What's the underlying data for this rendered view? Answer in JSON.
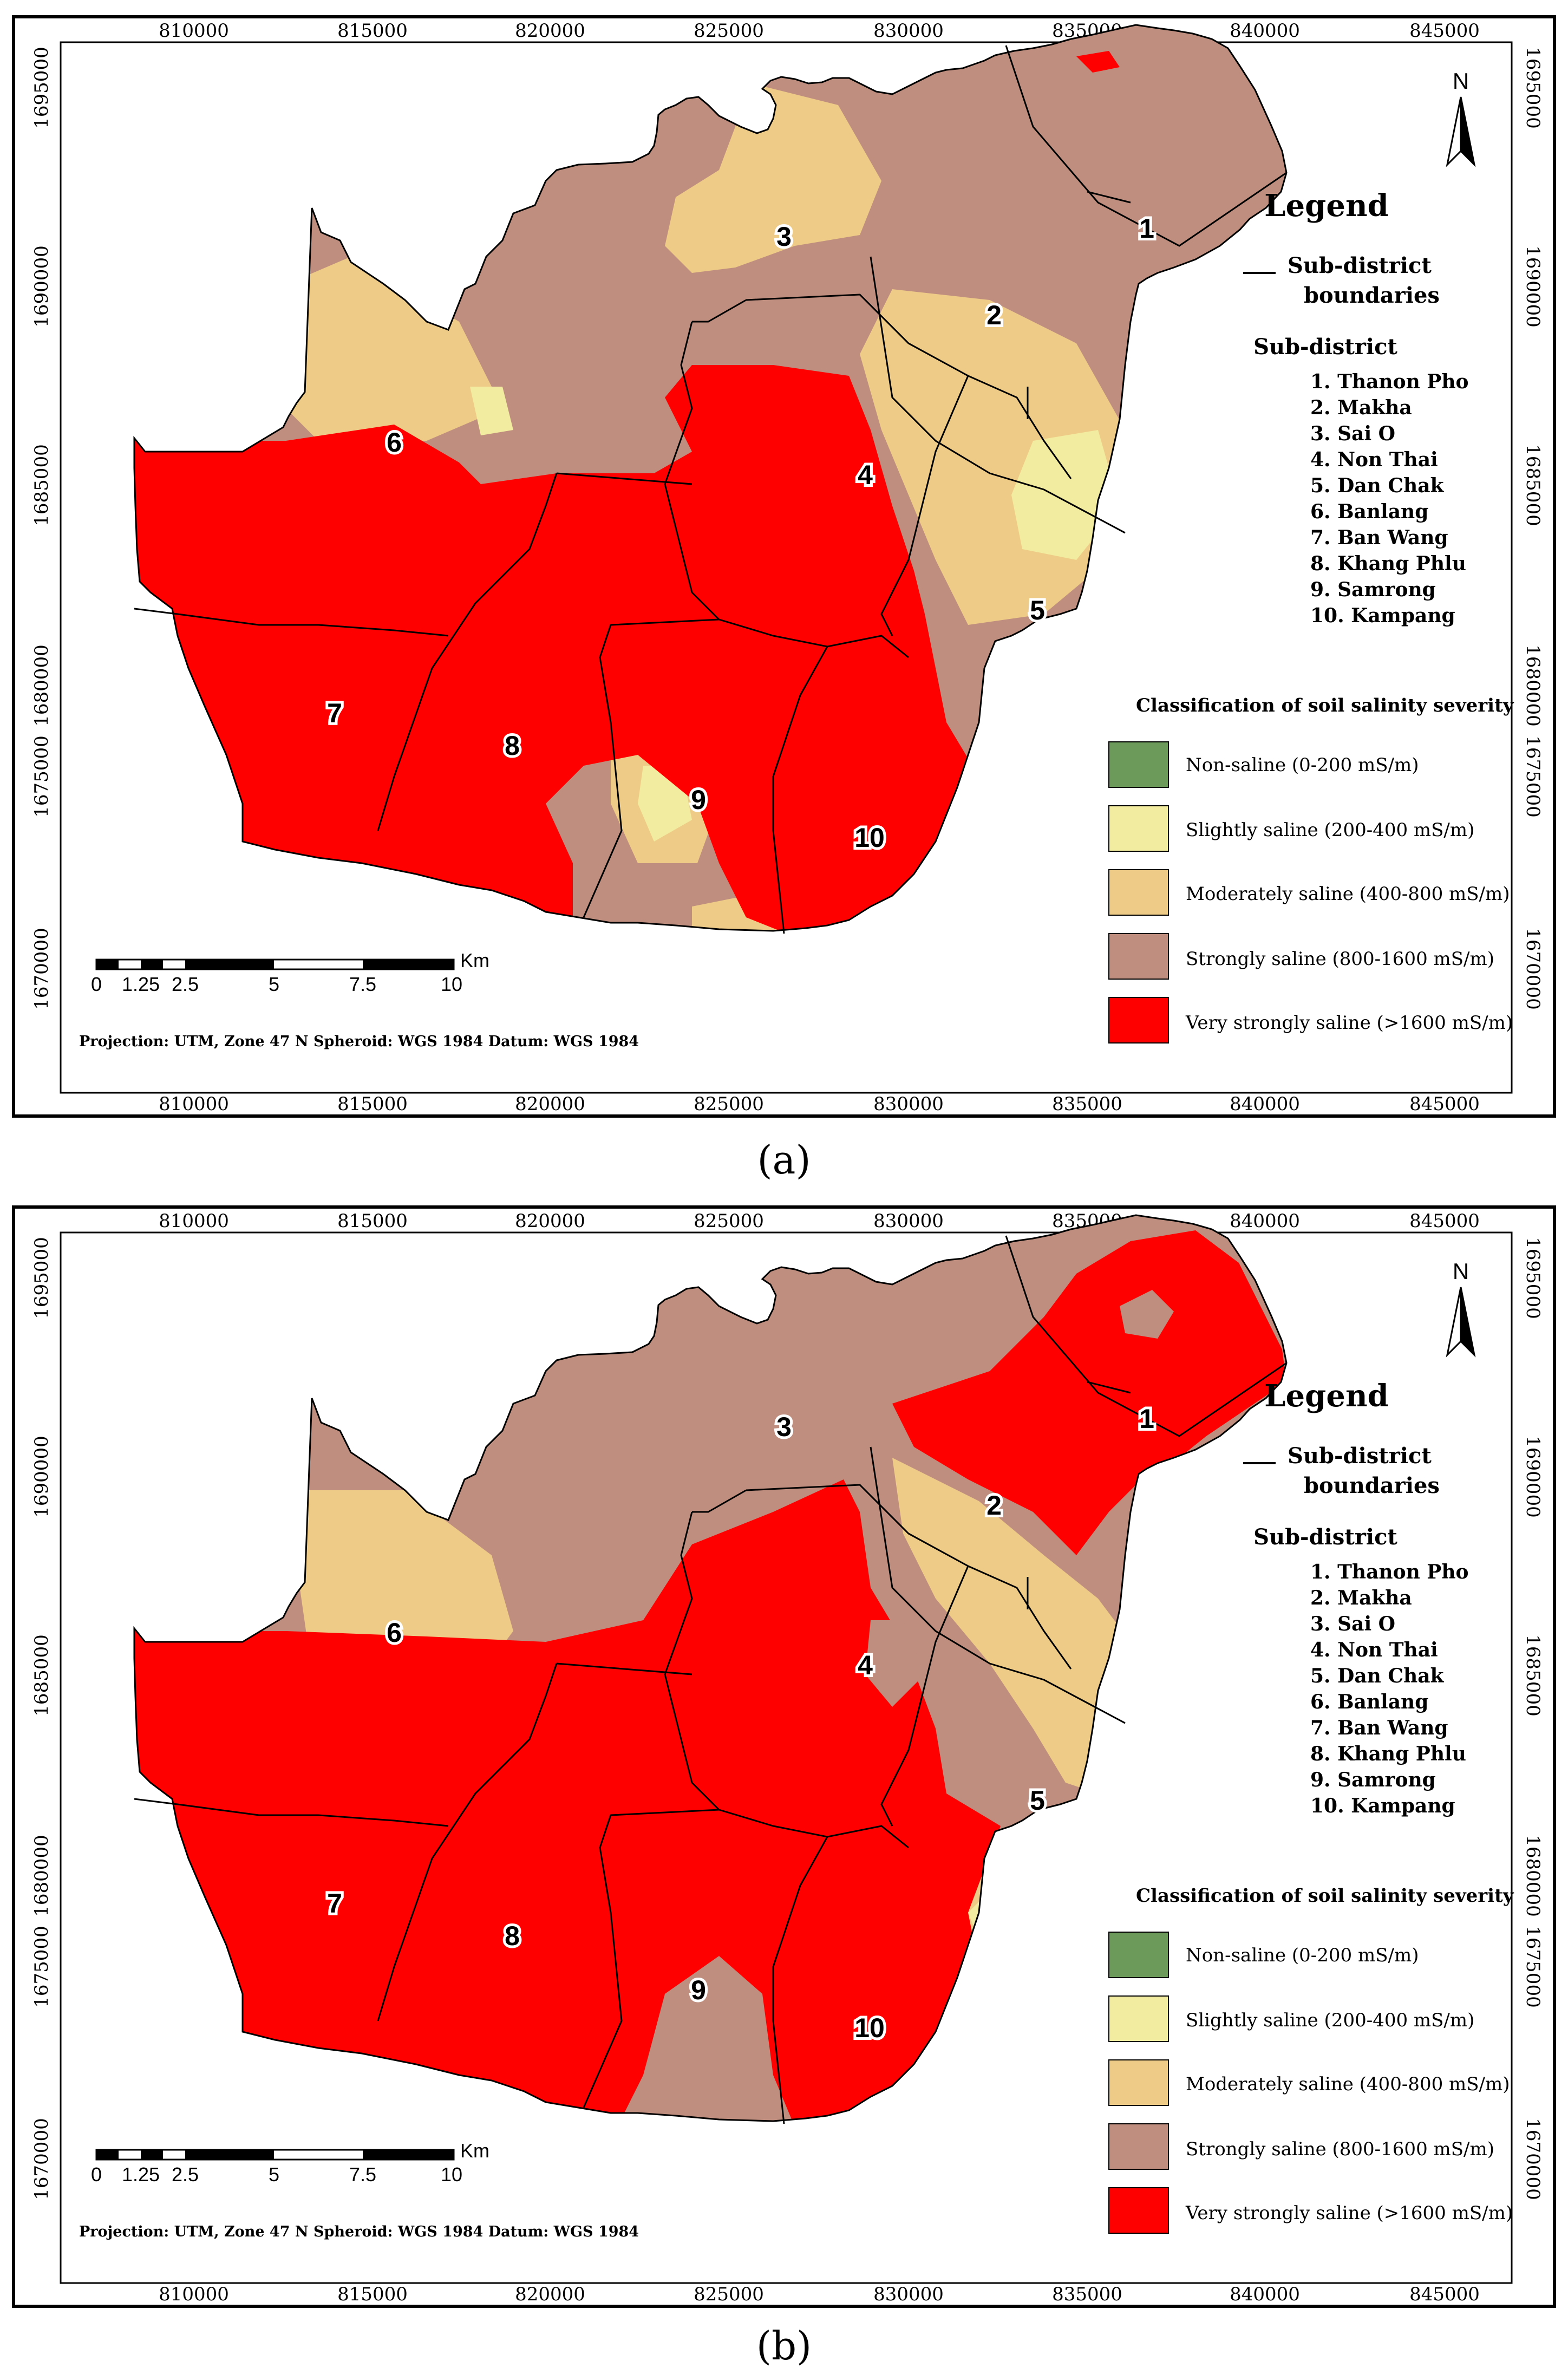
{
  "colors": {
    "non_saline": "#6b9a5b",
    "slightly_saline": "#f2eca0",
    "moderately_saline": "#eecb87",
    "strongly_saline": "#bf8e7e",
    "very_strongly_saline": "#ff0000"
  },
  "axes": {
    "x_ticks": [
      "810000",
      "815000",
      "820000",
      "825000",
      "830000",
      "835000",
      "840000",
      "845000"
    ],
    "y_ticks": [
      "1695000",
      "1690000",
      "1685000",
      "1680000",
      "1675000",
      "1670000"
    ]
  },
  "legend": {
    "title": "Legend",
    "boundary_label_1": "Sub-district",
    "boundary_label_2": "boundaries",
    "subdistrict_heading": "Sub-district",
    "subdistricts": [
      "1.  Thanon Pho",
      "2.  Makha",
      "3.  Sai O",
      "4.  Non Thai",
      "5.  Dan Chak",
      "6.  Banlang",
      "7.  Ban Wang",
      "8.  Khang Phlu",
      "9.  Samrong",
      "10.  Kampang"
    ],
    "classification_heading": "Classification of soil salinity severity",
    "classes": [
      "Non-saline (0-200 mS/m)",
      "Slightly saline (200-400 mS/m)",
      "Moderately saline (400-800 mS/m)",
      "Strongly saline (800-1600 mS/m)",
      "Very strongly saline (>1600 mS/m)"
    ]
  },
  "map_labels": [
    "1",
    "2",
    "3",
    "4",
    "5",
    "6",
    "7",
    "8",
    "9",
    "10"
  ],
  "north_label": "N",
  "scale_bar": {
    "ticks": [
      "0",
      "1.25",
      "2.5",
      "5",
      "7.5",
      "10"
    ],
    "unit": "Km"
  },
  "projection_note": "Projection: UTM, Zone 47 N    Spheroid: WGS 1984    Datum: WGS 1984",
  "captions": {
    "a": "(a)",
    "b": "(b)"
  }
}
